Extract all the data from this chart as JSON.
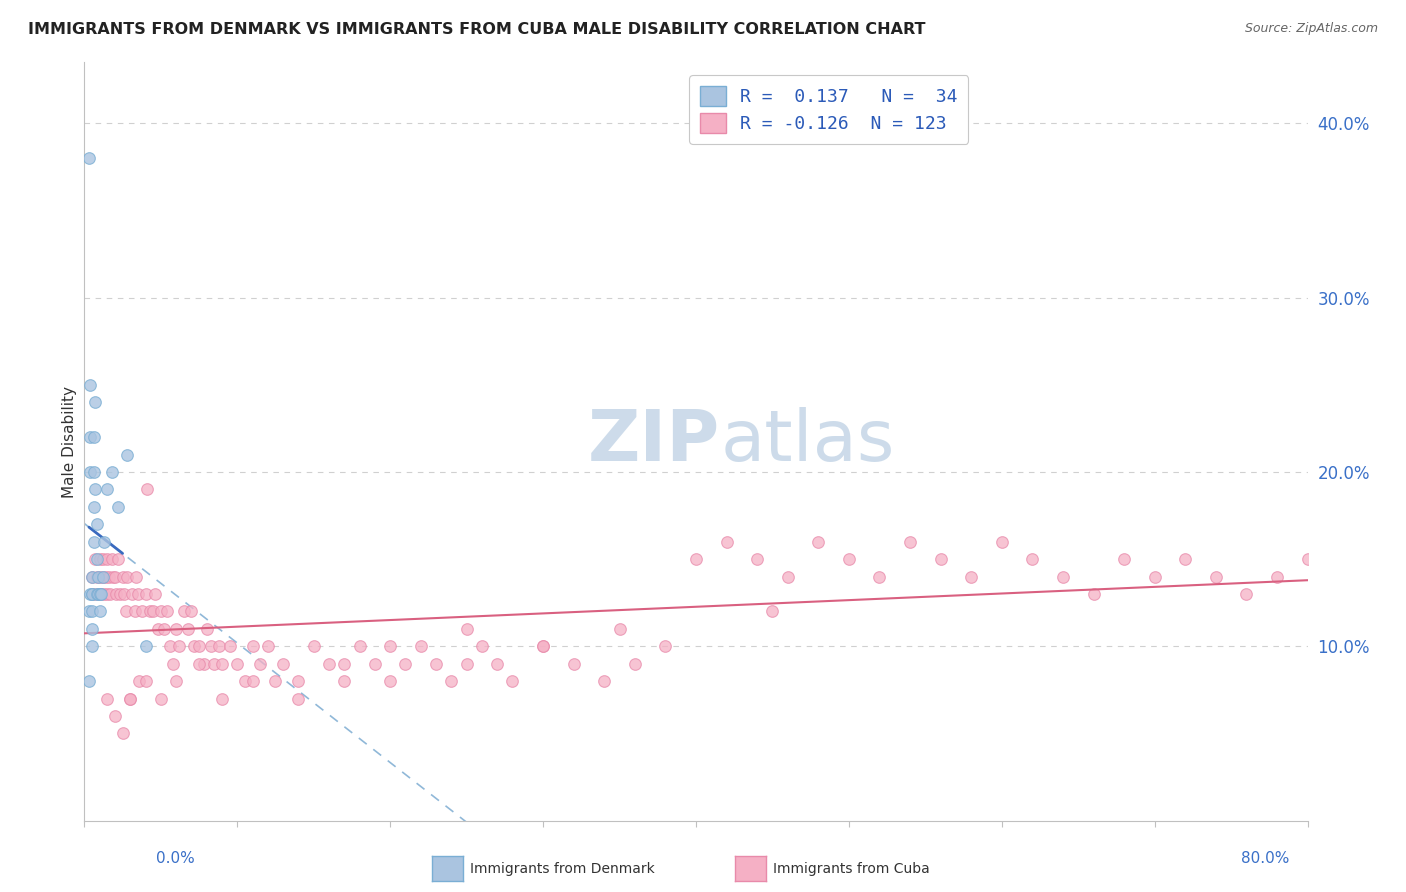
{
  "title": "IMMIGRANTS FROM DENMARK VS IMMIGRANTS FROM CUBA MALE DISABILITY CORRELATION CHART",
  "source": "Source: ZipAtlas.com",
  "ylabel": "Male Disability",
  "right_yticks": [
    "10.0%",
    "20.0%",
    "30.0%",
    "40.0%"
  ],
  "right_ytick_vals": [
    0.1,
    0.2,
    0.3,
    0.4
  ],
  "xlim": [
    0.0,
    0.8
  ],
  "ylim": [
    0.0,
    0.435
  ],
  "denmark_R": 0.137,
  "denmark_N": 34,
  "cuba_R": -0.126,
  "cuba_N": 123,
  "denmark_color": "#aac4e0",
  "denmark_edge": "#7aaed4",
  "cuba_color": "#f5b0c5",
  "cuba_edge": "#e88aaa",
  "denmark_solid_line_color": "#3a6abf",
  "denmark_dashed_line_color": "#90b8d8",
  "cuba_solid_line_color": "#d96080",
  "background_color": "#ffffff",
  "legend_text_color": "#2b5ab8",
  "watermark_color": "#c8d8e8",
  "grid_color": "#d0d0d0",
  "spine_color": "#c0c0c0",
  "right_axis_color": "#3a70c8",
  "bottom_label_color": "#3a70c8",
  "denmark_scatter_x": [
    0.003,
    0.003,
    0.004,
    0.004,
    0.004,
    0.004,
    0.005,
    0.005,
    0.005,
    0.005,
    0.005,
    0.005,
    0.006,
    0.006,
    0.006,
    0.006,
    0.007,
    0.007,
    0.008,
    0.008,
    0.008,
    0.009,
    0.009,
    0.01,
    0.01,
    0.011,
    0.012,
    0.013,
    0.015,
    0.018,
    0.022,
    0.028,
    0.04,
    0.003
  ],
  "denmark_scatter_y": [
    0.38,
    0.12,
    0.13,
    0.25,
    0.22,
    0.2,
    0.14,
    0.13,
    0.13,
    0.12,
    0.11,
    0.1,
    0.22,
    0.2,
    0.18,
    0.16,
    0.24,
    0.19,
    0.17,
    0.15,
    0.13,
    0.14,
    0.13,
    0.13,
    0.12,
    0.13,
    0.14,
    0.16,
    0.19,
    0.2,
    0.18,
    0.21,
    0.1,
    0.08
  ],
  "cuba_scatter_x": [
    0.005,
    0.006,
    0.007,
    0.008,
    0.009,
    0.01,
    0.01,
    0.011,
    0.012,
    0.012,
    0.013,
    0.014,
    0.015,
    0.015,
    0.016,
    0.017,
    0.018,
    0.019,
    0.02,
    0.021,
    0.022,
    0.023,
    0.025,
    0.026,
    0.027,
    0.028,
    0.03,
    0.031,
    0.033,
    0.034,
    0.035,
    0.036,
    0.038,
    0.04,
    0.041,
    0.043,
    0.045,
    0.046,
    0.048,
    0.05,
    0.052,
    0.054,
    0.056,
    0.058,
    0.06,
    0.062,
    0.065,
    0.068,
    0.07,
    0.072,
    0.075,
    0.078,
    0.08,
    0.083,
    0.085,
    0.088,
    0.09,
    0.095,
    0.1,
    0.105,
    0.11,
    0.115,
    0.12,
    0.125,
    0.13,
    0.14,
    0.15,
    0.16,
    0.17,
    0.18,
    0.19,
    0.2,
    0.21,
    0.22,
    0.23,
    0.24,
    0.25,
    0.26,
    0.27,
    0.28,
    0.3,
    0.32,
    0.34,
    0.36,
    0.38,
    0.4,
    0.42,
    0.44,
    0.46,
    0.48,
    0.5,
    0.52,
    0.54,
    0.56,
    0.58,
    0.6,
    0.62,
    0.64,
    0.66,
    0.68,
    0.7,
    0.72,
    0.74,
    0.76,
    0.78,
    0.8,
    0.45,
    0.35,
    0.3,
    0.25,
    0.2,
    0.17,
    0.14,
    0.11,
    0.09,
    0.075,
    0.06,
    0.05,
    0.04,
    0.03,
    0.025,
    0.02,
    0.015
  ],
  "cuba_scatter_y": [
    0.14,
    0.13,
    0.15,
    0.14,
    0.13,
    0.15,
    0.14,
    0.13,
    0.15,
    0.14,
    0.13,
    0.14,
    0.15,
    0.13,
    0.14,
    0.13,
    0.15,
    0.14,
    0.14,
    0.13,
    0.15,
    0.13,
    0.14,
    0.13,
    0.12,
    0.14,
    0.07,
    0.13,
    0.12,
    0.14,
    0.13,
    0.08,
    0.12,
    0.13,
    0.19,
    0.12,
    0.12,
    0.13,
    0.11,
    0.12,
    0.11,
    0.12,
    0.1,
    0.09,
    0.11,
    0.1,
    0.12,
    0.11,
    0.12,
    0.1,
    0.1,
    0.09,
    0.11,
    0.1,
    0.09,
    0.1,
    0.09,
    0.1,
    0.09,
    0.08,
    0.1,
    0.09,
    0.1,
    0.08,
    0.09,
    0.08,
    0.1,
    0.09,
    0.08,
    0.1,
    0.09,
    0.08,
    0.09,
    0.1,
    0.09,
    0.08,
    0.09,
    0.1,
    0.09,
    0.08,
    0.1,
    0.09,
    0.08,
    0.09,
    0.1,
    0.15,
    0.16,
    0.15,
    0.14,
    0.16,
    0.15,
    0.14,
    0.16,
    0.15,
    0.14,
    0.16,
    0.15,
    0.14,
    0.13,
    0.15,
    0.14,
    0.15,
    0.14,
    0.13,
    0.14,
    0.15,
    0.12,
    0.11,
    0.1,
    0.11,
    0.1,
    0.09,
    0.07,
    0.08,
    0.07,
    0.09,
    0.08,
    0.07,
    0.08,
    0.07,
    0.05,
    0.06,
    0.07
  ]
}
